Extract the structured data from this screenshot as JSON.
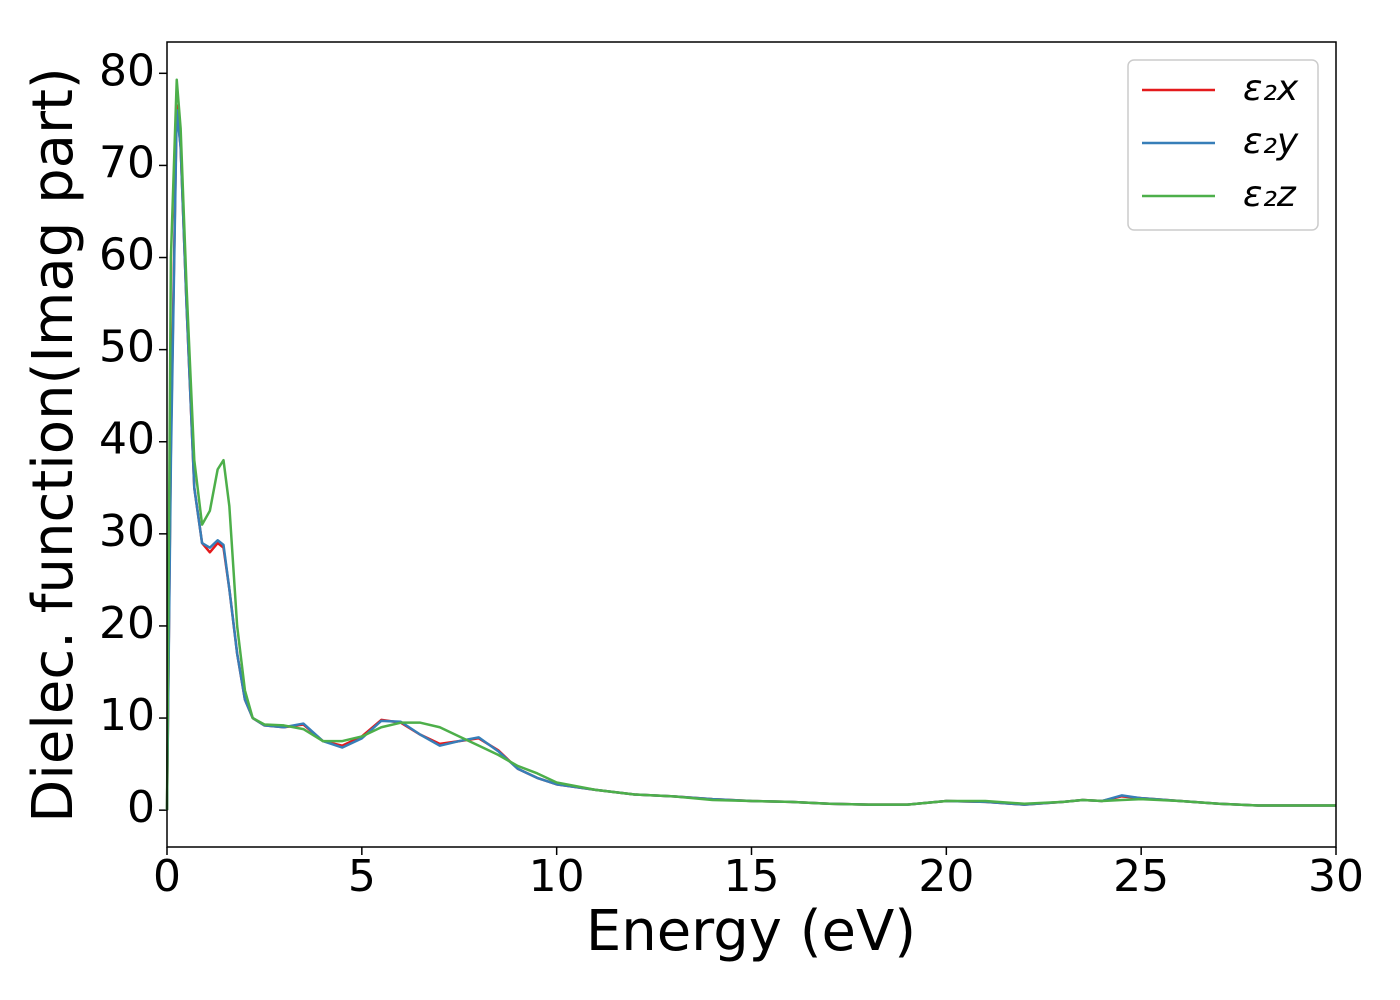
{
  "chart_data": {
    "type": "line",
    "x_label": "Energy (eV)",
    "y_label": "Dielec. function(Imag part)",
    "x": [
      0,
      0.1,
      0.25,
      0.35,
      0.5,
      0.7,
      0.9,
      1.1,
      1.3,
      1.45,
      1.6,
      1.8,
      2.0,
      2.2,
      2.5,
      3.0,
      3.5,
      4.0,
      4.5,
      5.0,
      5.5,
      6.0,
      6.5,
      7.0,
      7.5,
      8.0,
      8.5,
      9.0,
      9.5,
      10,
      11,
      12,
      13,
      14,
      15,
      16,
      17,
      18,
      19,
      20,
      21,
      22,
      23,
      23.5,
      24,
      24.5,
      25,
      26,
      27,
      28,
      29,
      30
    ],
    "series": [
      {
        "name": "ε₂x",
        "color": "#e41a1c",
        "values": [
          0,
          40,
          76.5,
          72,
          55,
          35,
          29,
          28,
          29,
          28.5,
          24,
          17,
          12,
          10,
          9.2,
          9,
          9.3,
          7.5,
          7,
          8,
          9.8,
          9.5,
          8.2,
          7.2,
          7.5,
          7.8,
          6.5,
          4.5,
          3.5,
          2.8,
          2.2,
          1.7,
          1.5,
          1.2,
          1,
          0.9,
          0.7,
          0.6,
          0.6,
          1.0,
          0.9,
          0.6,
          0.9,
          1.1,
          1.0,
          1.5,
          1.3,
          1.0,
          0.7,
          0.5,
          0.5,
          0.5
        ]
      },
      {
        "name": "ε₂y",
        "color": "#377eb8",
        "values": [
          0,
          38,
          76,
          72,
          55,
          35,
          29,
          28.5,
          29.3,
          28.8,
          24,
          17,
          12,
          10,
          9.2,
          9,
          9.4,
          7.5,
          6.8,
          7.8,
          9.7,
          9.6,
          8.2,
          7,
          7.5,
          7.9,
          6.4,
          4.5,
          3.5,
          2.8,
          2.2,
          1.7,
          1.5,
          1.2,
          1,
          0.9,
          0.7,
          0.6,
          0.6,
          1.0,
          0.9,
          0.6,
          0.9,
          1.1,
          1.0,
          1.6,
          1.3,
          1.0,
          0.7,
          0.5,
          0.5,
          0.5
        ]
      },
      {
        "name": "ε₂z",
        "color": "#4daf4a",
        "values": [
          0,
          60,
          79.3,
          74,
          57,
          38,
          31,
          32.5,
          37,
          38,
          33,
          20,
          13,
          10,
          9.3,
          9.2,
          8.8,
          7.5,
          7.5,
          8,
          9,
          9.5,
          9.5,
          9,
          8,
          7,
          6,
          4.8,
          4,
          3,
          2.2,
          1.7,
          1.5,
          1.1,
          1,
          0.9,
          0.7,
          0.6,
          0.6,
          1.0,
          1.0,
          0.7,
          0.9,
          1.1,
          1.0,
          1.1,
          1.2,
          1.0,
          0.7,
          0.5,
          0.5,
          0.5
        ]
      }
    ],
    "xlim": [
      0,
      30
    ],
    "xticks": [
      0,
      5,
      10,
      15,
      20,
      25,
      30
    ],
    "ylim": [
      -4,
      83.4
    ],
    "yticks": [
      0,
      10,
      20,
      30,
      40,
      50,
      60,
      70,
      80
    ],
    "grid": false,
    "legend": "upper right"
  }
}
